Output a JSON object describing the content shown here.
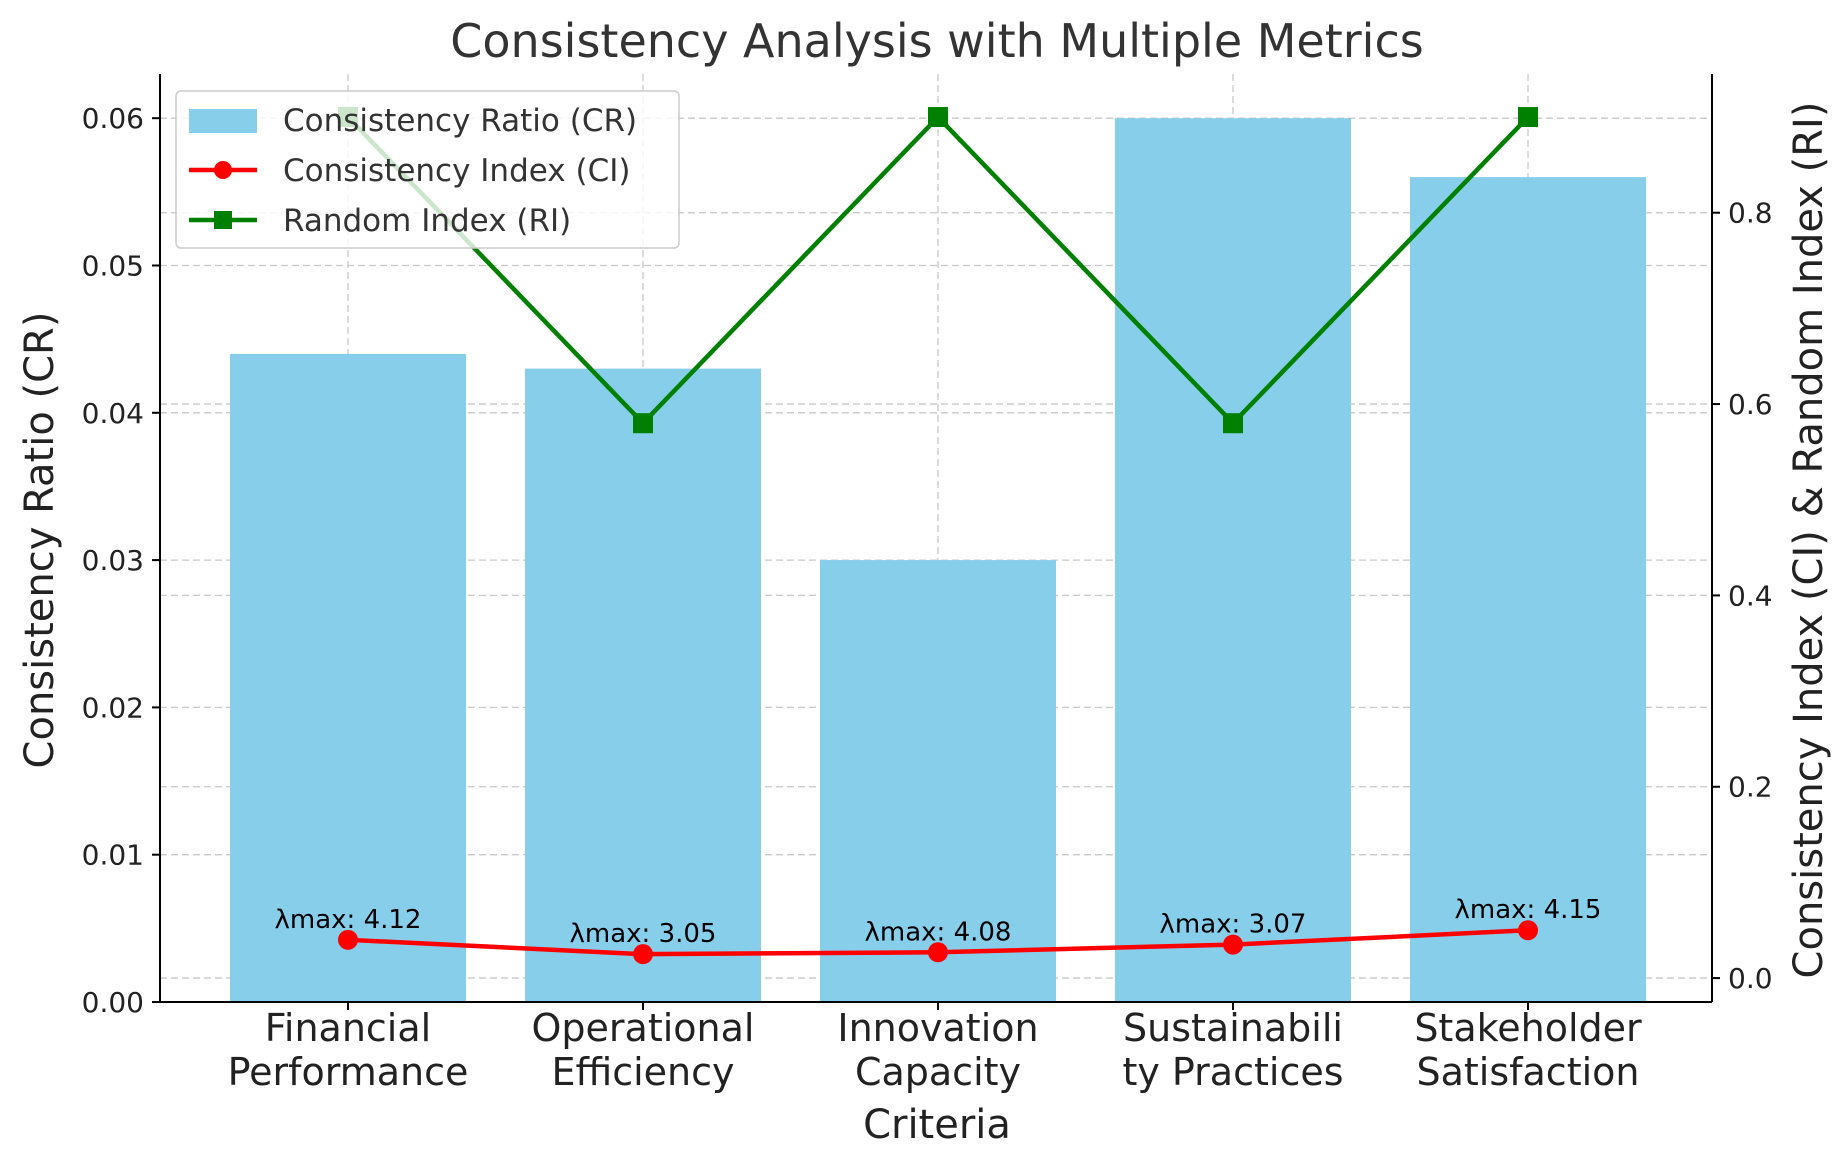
{
  "chart_data": {
    "type": "bar",
    "title": "Consistency Analysis with Multiple Metrics",
    "xlabel": "Criteria",
    "ylabel": "Consistency Ratio (CR)",
    "y2label": "Consistency Index (CI) & Random Index (RI)",
    "categories": [
      [
        "Financial",
        "Performance"
      ],
      [
        "Operational",
        "Efficiency"
      ],
      [
        "Innovation",
        "Capacity"
      ],
      [
        "Sustainabili",
        "ty Practices"
      ],
      [
        "Stakeholder",
        "Satisfaction"
      ]
    ],
    "ylim": [
      0,
      0.063
    ],
    "yticks": [
      0.0,
      0.01,
      0.02,
      0.03,
      0.04,
      0.05,
      0.06
    ],
    "ytick_labels": [
      "0.00",
      "0.01",
      "0.02",
      "0.03",
      "0.04",
      "0.05",
      "0.06"
    ],
    "y2lim": [
      -0.025,
      0.945
    ],
    "y2ticks": [
      0.0,
      0.2,
      0.4,
      0.6,
      0.8
    ],
    "y2tick_labels": [
      "0.0",
      "0.2",
      "0.4",
      "0.6",
      "0.8"
    ],
    "grid": true,
    "legend_position": "top-left",
    "series": [
      {
        "name": "Consistency Ratio (CR)",
        "kind": "bar",
        "axis": "left",
        "color": "#87ceeb",
        "values": [
          0.044,
          0.043,
          0.03,
          0.06,
          0.056
        ]
      },
      {
        "name": "Consistency Index (CI)",
        "kind": "line",
        "marker": "circle",
        "axis": "right",
        "color": "#ff0000",
        "values": [
          0.04,
          0.025,
          0.027,
          0.035,
          0.05
        ]
      },
      {
        "name": "Random Index (RI)",
        "kind": "line",
        "marker": "square",
        "axis": "right",
        "color": "#008000",
        "values": [
          0.9,
          0.58,
          0.9,
          0.58,
          0.9
        ]
      }
    ],
    "annotations": [
      "λmax: 4.12",
      "λmax: 3.05",
      "λmax: 4.08",
      "λmax: 3.07",
      "λmax: 4.15"
    ]
  }
}
